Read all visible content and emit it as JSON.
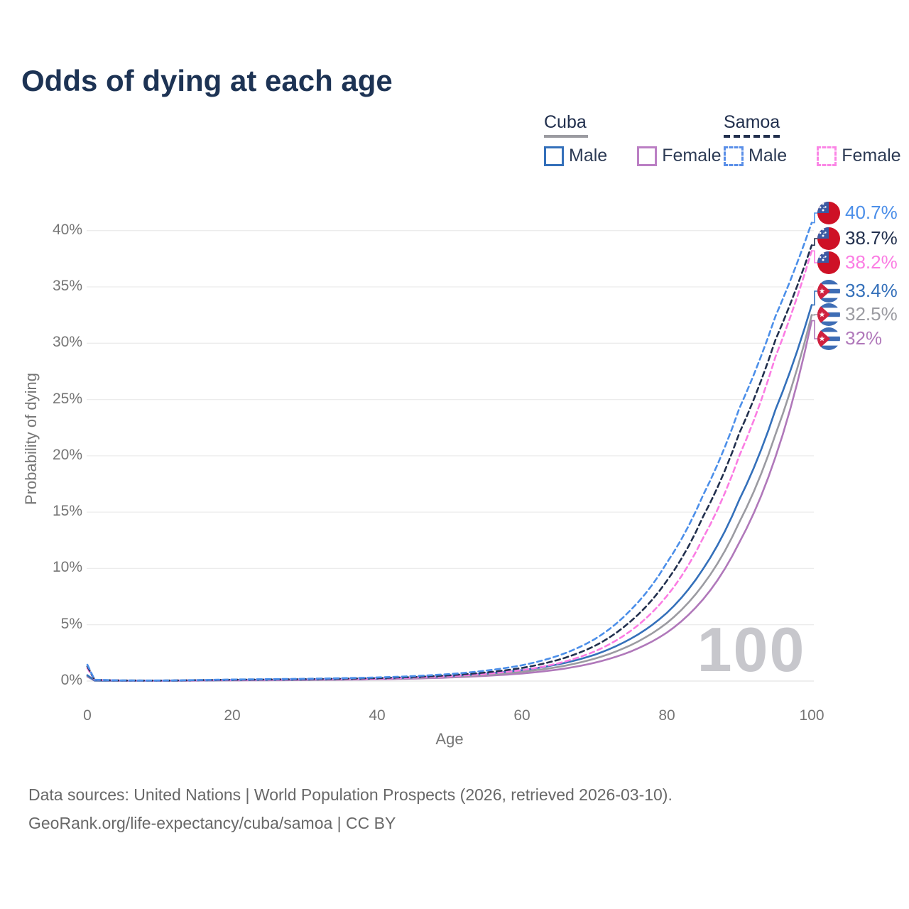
{
  "title": "Odds of dying at each age",
  "watermark": "100",
  "axes": {
    "x_label": "Age",
    "y_label": "Probability of dying",
    "x_ticks": [
      "0",
      "20",
      "40",
      "60",
      "80",
      "100"
    ],
    "y_ticks": [
      "0%",
      "5%",
      "10%",
      "15%",
      "20%",
      "25%",
      "30%",
      "35%",
      "40%"
    ]
  },
  "legend": {
    "groups": [
      {
        "country": "Cuba",
        "line_style": "solid",
        "line_color": "#9b9ba1",
        "items": [
          {
            "label": "Male",
            "color": "#3470ba"
          },
          {
            "label": "Female",
            "color": "#bb7fc4"
          }
        ]
      },
      {
        "country": "Samoa",
        "line_style": "dashed",
        "line_color": "#22304e",
        "items": [
          {
            "label": "Male",
            "color": "#5a8fe8"
          },
          {
            "label": "Female",
            "color": "#fb86e6"
          }
        ]
      }
    ]
  },
  "footer": {
    "line1": "Data sources: United Nations | World Population Prospects (2026, retrieved 2026-03-10).",
    "line2": "GeoRank.org/life-expectancy/cuba/samoa | CC BY"
  },
  "chart_data": {
    "type": "line",
    "title": "Odds of dying at each age",
    "xlabel": "Age",
    "ylabel": "Probability of dying",
    "xlim": [
      0,
      100
    ],
    "ylim_pct": [
      0,
      42
    ],
    "x_ticks": [
      0,
      20,
      40,
      60,
      80,
      100
    ],
    "y_ticks_pct": [
      0,
      5,
      10,
      15,
      20,
      25,
      30,
      35,
      40
    ],
    "grid": true,
    "legend_position": "top-right",
    "control_ages": [
      0,
      1,
      5,
      10,
      15,
      20,
      25,
      30,
      35,
      40,
      45,
      50,
      55,
      60,
      65,
      70,
      75,
      80,
      85,
      90,
      95,
      100
    ],
    "series": [
      {
        "name": "Cuba Female",
        "country": "Cuba",
        "sex": "Female",
        "flag": "cuba",
        "color": "#b078ba",
        "dashed": false,
        "end_label": "32%",
        "end_value_pct": 32.0,
        "values_pct": [
          0.4,
          0.04,
          0.024,
          0.024,
          0.04,
          0.055,
          0.07,
          0.09,
          0.115,
          0.15,
          0.215,
          0.315,
          0.46,
          0.67,
          1.02,
          1.62,
          2.62,
          4.3,
          7.25,
          12.3,
          19.9,
          32.0
        ]
      },
      {
        "name": "Cuba Both sexes",
        "country": "Cuba",
        "sex": "Both sexes",
        "flag": "cuba",
        "color": "#9b9ba1",
        "dashed": false,
        "end_label": "32.5%",
        "end_value_pct": 32.5,
        "values_pct": [
          0.46,
          0.045,
          0.027,
          0.027,
          0.05,
          0.075,
          0.09,
          0.11,
          0.14,
          0.185,
          0.265,
          0.385,
          0.56,
          0.82,
          1.25,
          1.98,
          3.18,
          5.15,
          8.55,
          14.1,
          21.9,
          32.5
        ]
      },
      {
        "name": "Cuba Male",
        "country": "Cuba",
        "sex": "Male",
        "flag": "cuba",
        "color": "#3470ba",
        "dashed": false,
        "end_label": "33.4%",
        "end_value_pct": 33.4,
        "values_pct": [
          0.52,
          0.05,
          0.03,
          0.03,
          0.06,
          0.09,
          0.11,
          0.13,
          0.17,
          0.22,
          0.31,
          0.45,
          0.66,
          0.97,
          1.48,
          2.33,
          3.75,
          6.05,
          9.95,
          16.1,
          24.1,
          33.4
        ]
      },
      {
        "name": "Samoa Female",
        "country": "Samoa",
        "sex": "Female",
        "flag": "samoa",
        "color": "#fb7ce3",
        "dashed": true,
        "end_label": "38.2%",
        "end_value_pct": 38.2,
        "values_pct": [
          1.15,
          0.1,
          0.045,
          0.04,
          0.065,
          0.095,
          0.115,
          0.14,
          0.17,
          0.21,
          0.3,
          0.43,
          0.63,
          0.97,
          1.57,
          2.62,
          4.45,
          7.55,
          12.7,
          20.0,
          28.8,
          38.2
        ]
      },
      {
        "name": "Samoa Both sexes",
        "country": "Samoa",
        "sex": "Both sexes",
        "flag": "samoa",
        "color": "#22304e",
        "dashed": true,
        "end_label": "38.7%",
        "end_value_pct": 38.7,
        "values_pct": [
          1.3,
          0.11,
          0.05,
          0.045,
          0.08,
          0.12,
          0.145,
          0.17,
          0.21,
          0.26,
          0.36,
          0.51,
          0.76,
          1.16,
          1.88,
          3.1,
          5.3,
          8.9,
          14.6,
          22.0,
          30.3,
          38.7
        ]
      },
      {
        "name": "Samoa Male",
        "country": "Samoa",
        "sex": "Male",
        "flag": "samoa",
        "color": "#4c8fe9",
        "dashed": true,
        "end_label": "40.7%",
        "end_value_pct": 40.7,
        "values_pct": [
          1.45,
          0.12,
          0.055,
          0.05,
          0.09,
          0.14,
          0.17,
          0.2,
          0.25,
          0.32,
          0.44,
          0.62,
          0.92,
          1.4,
          2.25,
          3.7,
          6.3,
          10.5,
          16.5,
          24.2,
          32.4,
          40.7
        ]
      }
    ]
  }
}
